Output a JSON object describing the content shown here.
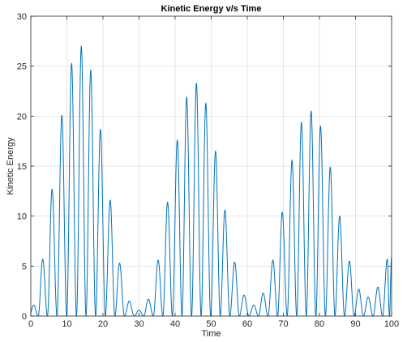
{
  "chart_data": {
    "type": "line",
    "title": "Kinetic Energy v/s Time",
    "xlabel": "Time",
    "ylabel": "Kinetic Energy",
    "xlim": [
      0,
      100
    ],
    "ylim": [
      0,
      30
    ],
    "xticks": [
      0,
      10,
      20,
      30,
      40,
      50,
      60,
      70,
      80,
      90,
      100
    ],
    "yticks": [
      0,
      5,
      10,
      15,
      20,
      25,
      30
    ],
    "grid": true,
    "series_color": "#0072BD",
    "peaks": [
      {
        "t": 0.8,
        "value": 1.1
      },
      {
        "t": 3.3,
        "value": 5.7
      },
      {
        "t": 5.9,
        "value": 12.7
      },
      {
        "t": 8.6,
        "value": 20.1
      },
      {
        "t": 11.3,
        "value": 25.3
      },
      {
        "t": 14.0,
        "value": 27.0
      },
      {
        "t": 16.6,
        "value": 24.6
      },
      {
        "t": 19.3,
        "value": 18.7
      },
      {
        "t": 22.0,
        "value": 11.6
      },
      {
        "t": 24.6,
        "value": 5.3
      },
      {
        "t": 27.3,
        "value": 1.5
      },
      {
        "t": 30.0,
        "value": 0.6
      },
      {
        "t": 32.6,
        "value": 1.7
      },
      {
        "t": 35.3,
        "value": 5.6
      },
      {
        "t": 37.9,
        "value": 11.4
      },
      {
        "t": 40.6,
        "value": 17.6
      },
      {
        "t": 43.2,
        "value": 21.9
      },
      {
        "t": 45.9,
        "value": 23.3
      },
      {
        "t": 48.5,
        "value": 21.3
      },
      {
        "t": 51.2,
        "value": 16.5
      },
      {
        "t": 53.8,
        "value": 10.6
      },
      {
        "t": 56.5,
        "value": 5.4
      },
      {
        "t": 59.1,
        "value": 2.1
      },
      {
        "t": 61.8,
        "value": 1.1
      },
      {
        "t": 64.4,
        "value": 2.3
      },
      {
        "t": 67.1,
        "value": 5.6
      },
      {
        "t": 69.7,
        "value": 10.4
      },
      {
        "t": 72.4,
        "value": 15.6
      },
      {
        "t": 75.0,
        "value": 19.4
      },
      {
        "t": 77.7,
        "value": 20.5
      },
      {
        "t": 80.3,
        "value": 19.0
      },
      {
        "t": 83.0,
        "value": 14.9
      },
      {
        "t": 85.6,
        "value": 10.0
      },
      {
        "t": 88.3,
        "value": 5.5
      },
      {
        "t": 90.9,
        "value": 2.7
      },
      {
        "t": 93.5,
        "value": 1.9
      },
      {
        "t": 96.2,
        "value": 2.9
      },
      {
        "t": 98.8,
        "value": 5.7
      },
      {
        "t": 100.0,
        "value": 5.9
      }
    ]
  }
}
